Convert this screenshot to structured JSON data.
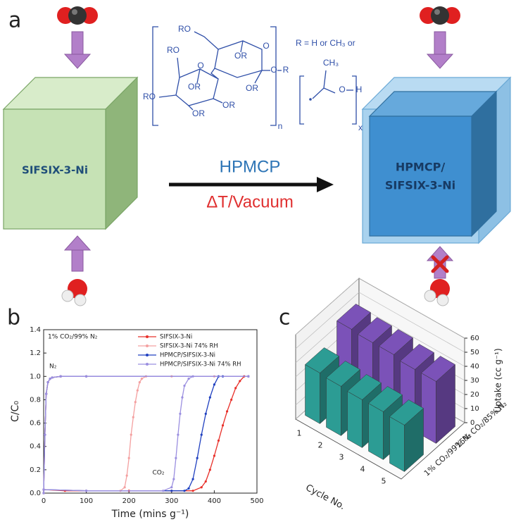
{
  "panel_a": {
    "label": "a",
    "left_cube": "SIFSIX-3-Ni",
    "right_cube": [
      "HPMCP/",
      "SIFSIX-3-Ni"
    ],
    "arrow_top": "HPMCP",
    "arrow_bottom": "ΔT/Vacuum",
    "structure_labels": [
      "RO",
      "RO",
      "OR",
      "OR",
      "O",
      "O",
      "R",
      "OR",
      "OR",
      "OR",
      "RO",
      "O",
      "n",
      "R = H or CH₃ or",
      "CH₃",
      "O",
      "H",
      "x"
    ]
  },
  "chart_data": [
    {
      "type": "line",
      "label": "b",
      "xlabel": "Time (mins g⁻¹)",
      "ylabel": "C/C₀",
      "annotations": [
        "1% CO₂/99% N₂",
        "N₂",
        "CO₂"
      ],
      "xlim": [
        0,
        500
      ],
      "xticks": [
        0,
        100,
        200,
        300,
        400,
        500
      ],
      "ylim": [
        0,
        1.4
      ],
      "yticks": [
        {
          "value": 0,
          "label": "0.0"
        },
        0.2,
        0.4,
        0.6,
        0.8,
        {
          "value": 1,
          "label": "1.0"
        },
        1.2,
        1.4
      ],
      "legend": "upper right",
      "series": [
        {
          "name": "SIFSIX-3-Ni",
          "color": "#e8302a",
          "x": [
            0,
            50,
            100,
            200,
            300,
            350,
            370,
            380,
            390,
            400,
            410,
            420,
            430,
            440,
            450,
            460,
            470,
            480
          ],
          "values": [
            0.03,
            0.02,
            0.02,
            0.02,
            0.02,
            0.02,
            0.05,
            0.1,
            0.2,
            0.32,
            0.45,
            0.58,
            0.7,
            0.8,
            0.9,
            0.96,
            1.0,
            1.0
          ],
          "n2_x": [
            0,
            3,
            6,
            10,
            15,
            20,
            40,
            100,
            480
          ],
          "n2_values": [
            0,
            0.5,
            0.85,
            0.95,
            0.98,
            0.99,
            1.0,
            1.0,
            1.0
          ]
        },
        {
          "name": "SIFSIX-3-Ni 74% RH",
          "color": "#f4a0a0",
          "x": [
            0,
            100,
            180,
            190,
            195,
            200,
            205,
            210,
            215,
            220,
            225,
            230,
            240,
            300,
            400,
            480
          ],
          "values": [
            0.03,
            0.02,
            0.02,
            0.05,
            0.15,
            0.3,
            0.5,
            0.65,
            0.78,
            0.88,
            0.95,
            0.98,
            1.0,
            1.0,
            1.0,
            1.0
          ],
          "n2_x": [
            0,
            3,
            6,
            10,
            15,
            20,
            40,
            100,
            480
          ],
          "n2_values": [
            0,
            0.5,
            0.85,
            0.95,
            0.98,
            0.99,
            1.0,
            1.0,
            1.0
          ]
        },
        {
          "name": "HPMCP/SIFSIX-3-Ni",
          "color": "#2040c0",
          "x": [
            0,
            100,
            300,
            330,
            340,
            350,
            360,
            370,
            380,
            390,
            400,
            410,
            420,
            480
          ],
          "values": [
            0.03,
            0.02,
            0.02,
            0.02,
            0.04,
            0.12,
            0.3,
            0.5,
            0.68,
            0.82,
            0.93,
            1.0,
            1.0,
            1.0
          ],
          "n2_x": [
            0,
            3,
            6,
            10,
            15,
            20,
            40,
            100,
            480
          ],
          "n2_values": [
            0,
            0.5,
            0.85,
            0.95,
            0.98,
            0.99,
            1.0,
            1.0,
            1.0
          ]
        },
        {
          "name": "HPMCP/SIFSIX-3-Ni 74% RH",
          "color": "#9b8fe0",
          "x": [
            0,
            100,
            280,
            300,
            305,
            310,
            315,
            320,
            325,
            330,
            340,
            350,
            480
          ],
          "values": [
            0.03,
            0.02,
            0.02,
            0.05,
            0.12,
            0.3,
            0.5,
            0.68,
            0.82,
            0.92,
            0.98,
            1.0,
            1.0
          ],
          "n2_x": [
            0,
            3,
            6,
            10,
            15,
            20,
            40,
            100,
            480
          ],
          "n2_values": [
            0,
            0.5,
            0.85,
            0.95,
            0.98,
            0.99,
            1.0,
            1.0,
            1.0
          ]
        }
      ]
    },
    {
      "type": "bar3d",
      "label": "c",
      "xlabel": "Cycle No.",
      "ylabel": "Uptake (cc g⁻¹)",
      "categories": [
        "1",
        "2",
        "3",
        "4",
        "5"
      ],
      "ylim": [
        0,
        60
      ],
      "yticks": [
        0,
        10,
        20,
        30,
        40,
        50,
        60
      ],
      "series": [
        {
          "name": "1% CO₂/99% N₂",
          "color": "#2c9c94",
          "values": [
            36,
            35,
            34,
            34,
            33
          ]
        },
        {
          "name": "15% CO₂/85% N₂",
          "color": "#7b52b8",
          "values": [
            47,
            46,
            46,
            44,
            44
          ]
        }
      ]
    }
  ]
}
